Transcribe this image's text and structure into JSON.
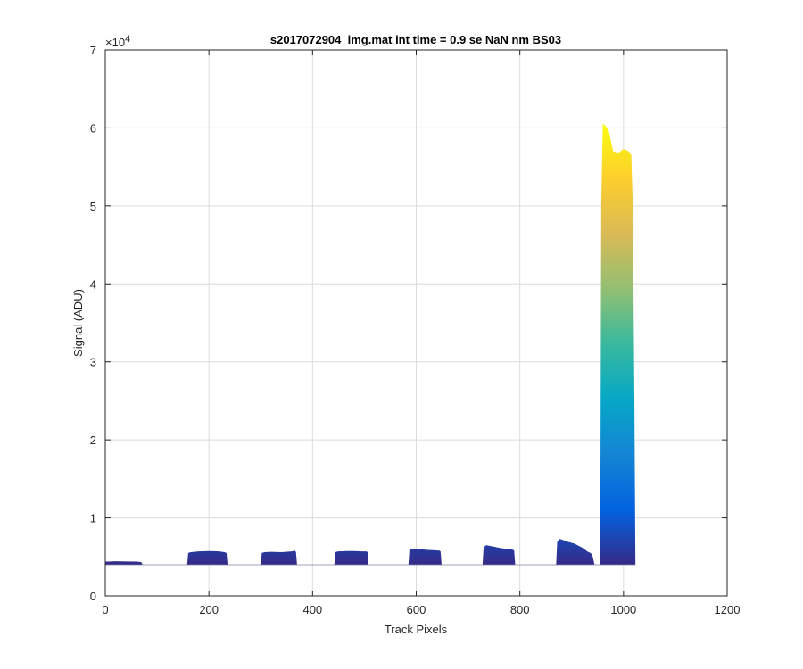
{
  "chart_data": {
    "type": "area",
    "title": "s2017072904_img.mat int time = 0.9 se  NaN nm BS03",
    "xlabel": "Track Pixels",
    "ylabel": "Signal (ADU)",
    "xlim": [
      0,
      1200
    ],
    "ylim": [
      0,
      70000
    ],
    "y_exponent_label": "×10",
    "y_exponent_power": "4",
    "y_tick_scale": 10000,
    "xticks": [
      0,
      200,
      400,
      600,
      800,
      1000,
      1200
    ],
    "yticks": [
      0,
      10000,
      20000,
      30000,
      40000,
      50000,
      60000,
      70000
    ],
    "xtick_labels": [
      "0",
      "200",
      "400",
      "600",
      "800",
      "1000",
      "1200"
    ],
    "ytick_labels": [
      "0",
      "1",
      "2",
      "3",
      "4",
      "5",
      "6",
      "7"
    ],
    "grid": true,
    "baseline": 4000,
    "colormap": "parula",
    "colors": [
      "#352a87",
      "#0363e1",
      "#1485d4",
      "#06a7c6",
      "#38b99e",
      "#92bf73",
      "#d9ba56",
      "#fcce2e",
      "#f9fb0e"
    ],
    "series": [
      {
        "x": [
          0,
          1,
          5,
          20,
          40,
          60,
          68,
          70,
          72
        ],
        "y": [
          4000,
          4400,
          4400,
          4450,
          4420,
          4400,
          4350,
          4300,
          4000
        ]
      },
      {
        "x": [
          158,
          160,
          165,
          180,
          200,
          220,
          230,
          234,
          236
        ],
        "y": [
          4000,
          5500,
          5600,
          5700,
          5750,
          5700,
          5600,
          5500,
          4000
        ]
      },
      {
        "x": [
          300,
          302,
          307,
          320,
          340,
          360,
          366,
          368,
          370
        ],
        "y": [
          4000,
          5500,
          5600,
          5650,
          5600,
          5700,
          5800,
          5600,
          4000
        ]
      },
      {
        "x": [
          442,
          444,
          449,
          465,
          480,
          495,
          504,
          506,
          508
        ],
        "y": [
          4000,
          5600,
          5700,
          5750,
          5750,
          5700,
          5700,
          5600,
          4000
        ]
      },
      {
        "x": [
          585,
          587,
          592,
          605,
          620,
          635,
          645,
          647,
          649
        ],
        "y": [
          4000,
          5900,
          6000,
          6000,
          5900,
          5850,
          5800,
          5700,
          4000
        ]
      },
      {
        "x": [
          728,
          730,
          735,
          750,
          765,
          780,
          787,
          789,
          791
        ],
        "y": [
          4000,
          6200,
          6500,
          6300,
          6100,
          6000,
          5900,
          5800,
          4000
        ]
      },
      {
        "x": [
          870,
          872,
          877,
          890,
          905,
          920,
          930,
          936,
          938,
          940,
          944
        ],
        "y": [
          4000,
          6900,
          7300,
          7000,
          6700,
          6200,
          5700,
          5500,
          5400,
          5200,
          4000
        ]
      },
      {
        "x": [
          955,
          957,
          960,
          965,
          972,
          980,
          990,
          1000,
          1010,
          1015,
          1018,
          1021,
          1023
        ],
        "y": [
          4000,
          50000,
          60500,
          60300,
          59500,
          57000,
          56800,
          57300,
          57000,
          56500,
          50000,
          25000,
          4000
        ]
      }
    ]
  }
}
